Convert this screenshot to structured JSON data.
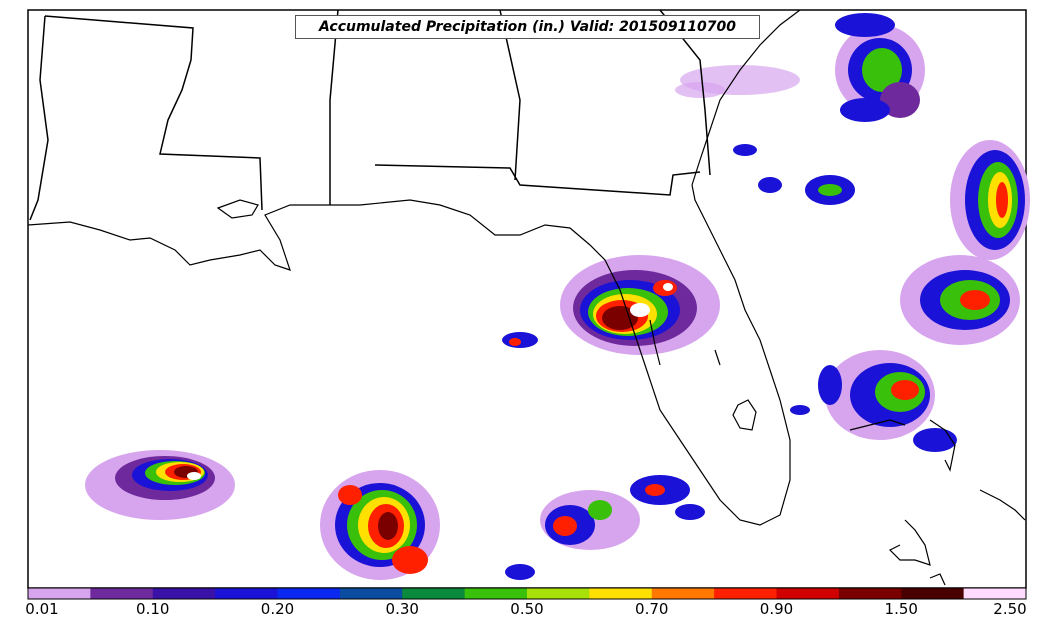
{
  "map": {
    "title": "Accumulated Precipitation (in.) Valid: 201509110700",
    "colorbar": {
      "colors": [
        "#d7a5ee",
        "#6e2a9c",
        "#3a12a8",
        "#1a12d6",
        "#0a28f0",
        "#0a4ca0",
        "#0a8a3c",
        "#38c00a",
        "#a8e00a",
        "#ffe000",
        "#ff7800",
        "#ff2000",
        "#d00000",
        "#7a0000",
        "#4a0000",
        "#ffdcff"
      ],
      "tick_labels": [
        "0.01",
        "0.10",
        "0.20",
        "0.30",
        "0.50",
        "0.70",
        "0.90",
        "1.50",
        "2.50"
      ]
    }
  }
}
